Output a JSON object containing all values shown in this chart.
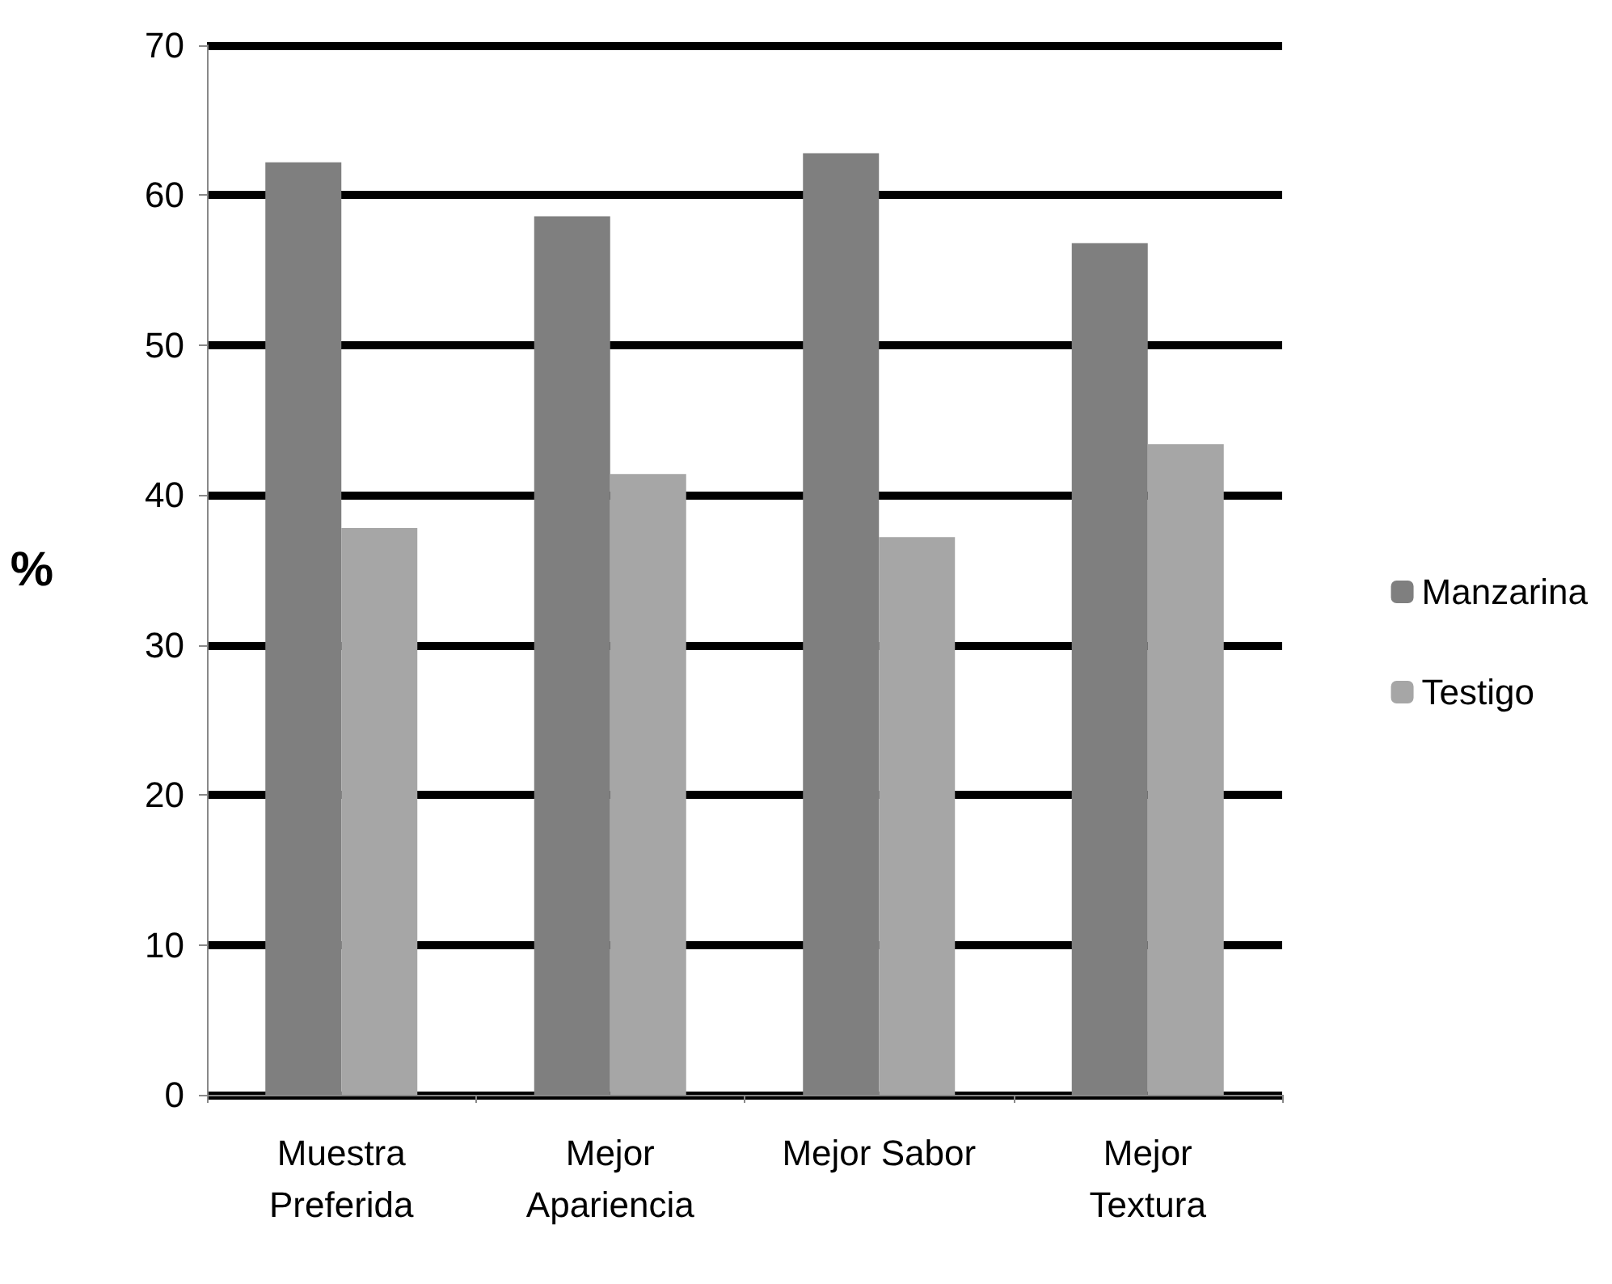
{
  "chart_data": {
    "type": "bar",
    "ylabel": "%",
    "categories": [
      "Muestra\nPreferida",
      "Mejor\nApariencia",
      "Mejor Sabor",
      "Mejor\nTextura"
    ],
    "series": [
      {
        "name": "Manzarina",
        "color": "#7f7f7f",
        "values": [
          62.2,
          58.6,
          62.8,
          56.8
        ]
      },
      {
        "name": "Testigo",
        "color": "#a6a6a6",
        "values": [
          37.8,
          41.4,
          37.2,
          43.4
        ]
      }
    ],
    "ylim": [
      0,
      70
    ],
    "yticks": [
      0,
      10,
      20,
      30,
      40,
      50,
      60,
      70
    ],
    "grid": "y",
    "legend": "right"
  }
}
